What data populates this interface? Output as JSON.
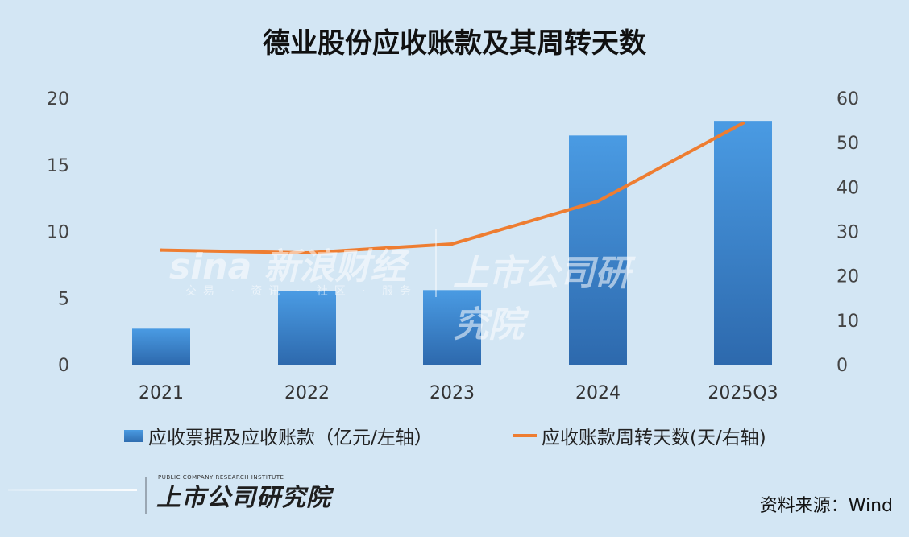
{
  "chart_data": {
    "type": "bar",
    "title": "德业股份应收账款及其周转天数",
    "categories": [
      "2021",
      "2022",
      "2023",
      "2024",
      "2025Q3"
    ],
    "series": [
      {
        "name": "应收票据及应收账款（亿元/左轴）",
        "type": "bar",
        "axis": "left",
        "values": [
          2.7,
          5.5,
          5.6,
          17.2,
          18.3
        ],
        "color": "#3a87d4"
      },
      {
        "name": "应收账款周转天数(天/右轴)",
        "type": "line",
        "axis": "right",
        "values": [
          25.8,
          25.2,
          27.2,
          36.8,
          54.4
        ],
        "color": "#ee7d31"
      }
    ],
    "y_left": {
      "min": 0,
      "max": 20,
      "ticks": [
        "0",
        "5",
        "10",
        "15",
        "20"
      ]
    },
    "y_right": {
      "min": 0,
      "max": 60,
      "ticks": [
        "0",
        "10",
        "20",
        "30",
        "40",
        "50",
        "60"
      ]
    },
    "grid": false,
    "legend_position": "bottom"
  },
  "watermark": {
    "sina": "sina 新浪财经",
    "sina_sub": "交易 · 资讯 · 社区 · 服务",
    "institute": "上市公司研究院"
  },
  "footer": {
    "logo": "上市公司研究院",
    "logo_sub": "PUBLIC COMPANY RESEARCH INSTITUTE",
    "source": "资料来源：Wind"
  }
}
